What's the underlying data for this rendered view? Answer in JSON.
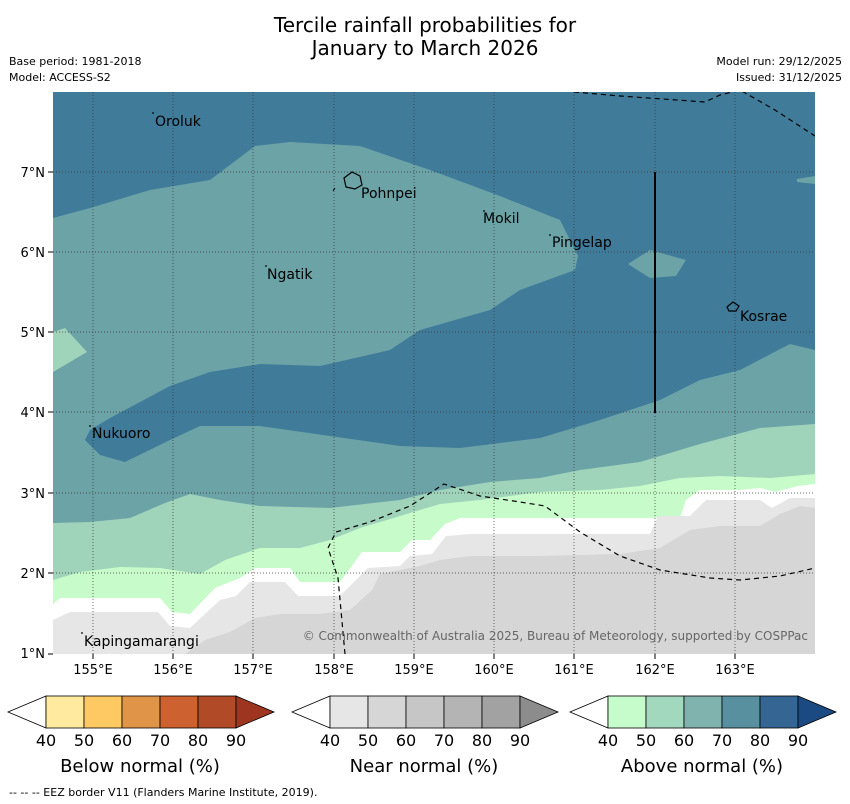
{
  "header": {
    "title_line1": "Tercile rainfall probabilities for",
    "title_line2": "January to March 2026",
    "base_period": "Base period: 1981-2018",
    "model": "Model: ACCESS-S2",
    "model_run": "Model run: 29/12/2025",
    "issued": "Issued: 31/12/2025"
  },
  "map": {
    "lat_labels": [
      "7°N",
      "6°N",
      "5°N",
      "4°N",
      "3°N",
      "2°N",
      "1°N"
    ],
    "lon_labels": [
      "155°E",
      "156°E",
      "157°E",
      "158°E",
      "159°E",
      "160°E",
      "161°E",
      "162°E",
      "163°E"
    ],
    "places": {
      "oroluk": "Oroluk",
      "pohnpei": "Pohnpei",
      "mokil": "Mokil",
      "pingelap": "Pingelap",
      "ngatik": "Ngatik",
      "kosrae": "Kosrae",
      "nukuoro": "Nukuoro",
      "kapingamarangi": "Kapingamarangi"
    },
    "copyright": "© Commonwealth of Australia 2025, Bureau of Meteorology, supported by COSPPac"
  },
  "legend": {
    "ticks": [
      "40",
      "50",
      "60",
      "70",
      "80",
      "90"
    ],
    "below": {
      "label": "Below normal (%)",
      "colors": [
        "#ffffff",
        "#ffeaa0",
        "#fec963",
        "#e09448",
        "#cd6230",
        "#b14a27",
        "#9d3520"
      ]
    },
    "near": {
      "label": "Near normal (%)",
      "colors": [
        "#ffffff",
        "#e6e6e6",
        "#d6d6d6",
        "#c6c6c6",
        "#b4b4b4",
        "#a2a2a2",
        "#8c8c8c"
      ]
    },
    "above": {
      "label": "Above normal (%)",
      "colors": [
        "#ffffff",
        "#c6fccb",
        "#a2d8bd",
        "#80b3ad",
        "#5990a0",
        "#356693",
        "#1b4a82"
      ]
    }
  },
  "footer": {
    "eez_note": "--  --  -- EEZ border V11 (Flanders Marine Institute, 2019)."
  }
}
